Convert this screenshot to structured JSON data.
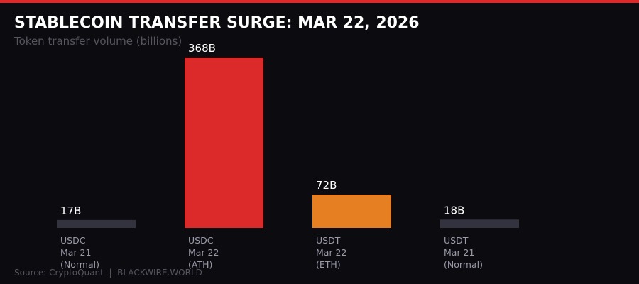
{
  "chart_data": {
    "type": "bar",
    "title": "STABLECOIN TRANSFER SURGE: MAR 22, 2026",
    "subtitle": "Token transfer volume (billions)",
    "categories": [
      [
        "USDC",
        "Mar 21",
        "(Normal)"
      ],
      [
        "USDC",
        "Mar 22",
        "(ATH)"
      ],
      [
        "USDT",
        "Mar 22",
        "(ETH)"
      ],
      [
        "USDT",
        "Mar 21",
        "(Normal)"
      ]
    ],
    "values": [
      17,
      368,
      72,
      18
    ],
    "value_labels": [
      "17B",
      "368B",
      "72B",
      "18B"
    ],
    "colors": [
      "#33333f",
      "#dc2a2a",
      "#e67e22",
      "#33333f"
    ],
    "source": "Source: CryptoQuant  |  BLACKWIRE.WORLD"
  }
}
